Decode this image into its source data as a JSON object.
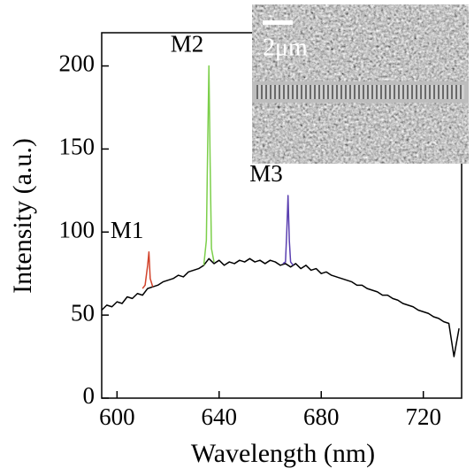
{
  "chart_data": {
    "type": "line",
    "xlabel": "Wavelength (nm)",
    "ylabel": "Intensity (a.u.)",
    "xlim": [
      594,
      735
    ],
    "ylim": [
      0,
      220
    ],
    "xticks": [
      600,
      640,
      680,
      720
    ],
    "yticks": [
      0,
      50,
      100,
      150,
      200
    ],
    "series": [
      {
        "color": "#000000",
        "x": [
          594,
          596,
          598,
          600,
          602,
          604,
          606,
          608,
          610,
          612,
          614,
          616,
          618,
          620,
          622,
          624,
          626,
          628,
          630,
          632,
          634,
          636,
          638,
          640,
          642,
          644,
          646,
          648,
          650,
          652,
          654,
          656,
          658,
          660,
          662,
          664,
          666,
          668,
          670,
          672,
          674,
          676,
          678,
          680,
          682,
          684,
          686,
          688,
          690,
          692,
          694,
          696,
          698,
          700,
          702,
          704,
          706,
          708,
          710,
          712,
          714,
          716,
          718,
          720,
          722,
          724,
          726,
          728,
          730,
          732,
          734
        ],
        "values": [
          53,
          56,
          55,
          58,
          57,
          61,
          60,
          63,
          62,
          66,
          67,
          68,
          70,
          71,
          72,
          74,
          73,
          76,
          77,
          78,
          80,
          84,
          81,
          83,
          80,
          82,
          81,
          83,
          82,
          84,
          82,
          83,
          81,
          83,
          82,
          80,
          81,
          79,
          81,
          78,
          80,
          77,
          78,
          75,
          76,
          74,
          73,
          72,
          71,
          70,
          68,
          68,
          66,
          65,
          64,
          62,
          62,
          60,
          59,
          57,
          56,
          55,
          53,
          52,
          51,
          49,
          48,
          46,
          45,
          25,
          42
        ]
      },
      {
        "name": "M1",
        "color": "#d2432b",
        "x": [
          610,
          611,
          612,
          612.5,
          613,
          614
        ],
        "values": [
          66,
          68,
          80,
          88,
          72,
          67
        ]
      },
      {
        "name": "M2",
        "color": "#7ccf4a",
        "x": [
          634,
          635,
          635.5,
          636,
          636.5,
          637,
          638
        ],
        "values": [
          80,
          95,
          150,
          200,
          140,
          90,
          82
        ]
      },
      {
        "name": "M3",
        "color": "#5a3fb0",
        "x": [
          665,
          666,
          666.5,
          667,
          667.5,
          668,
          669
        ],
        "values": [
          81,
          82,
          100,
          122,
          95,
          82,
          80
        ]
      }
    ]
  },
  "inset": {
    "scale_label": "2μm"
  }
}
